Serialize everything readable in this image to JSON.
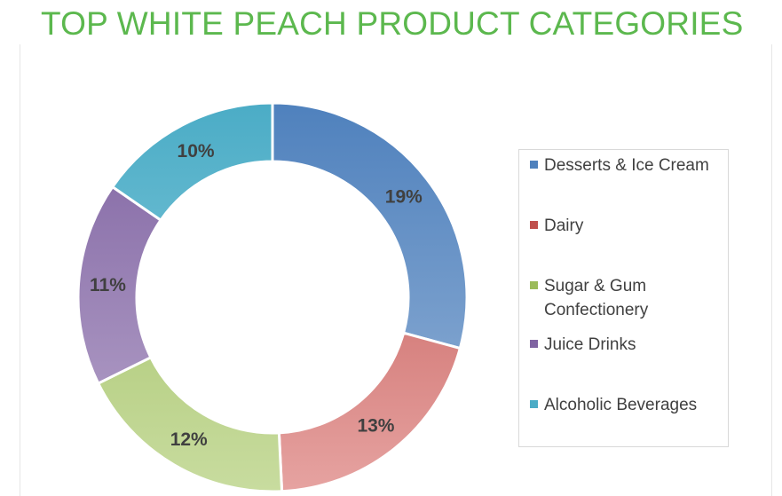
{
  "title": "TOP WHITE PEACH PRODUCT CATEGORIES",
  "chart_data": {
    "type": "pie",
    "variant": "donut",
    "title": "TOP WHITE PEACH PRODUCT CATEGORIES",
    "categories": [
      "Desserts & Ice Cream",
      "Dairy",
      "Sugar & Gum Confectionery",
      "Juice Drinks",
      "Alcoholic Beverages"
    ],
    "values": [
      19,
      13,
      12,
      11,
      10
    ],
    "labels": [
      "19%",
      "13%",
      "12%",
      "11%",
      "10%"
    ],
    "legend_position": "right",
    "colors": [
      "#4f81bd",
      "#c0504d",
      "#9bbb59",
      "#8064a2",
      "#4bacc6"
    ],
    "colors_light": [
      "#95b3d7",
      "#e6a3a1",
      "#c8dc9f",
      "#b7a5cb",
      "#95d3e2"
    ]
  }
}
